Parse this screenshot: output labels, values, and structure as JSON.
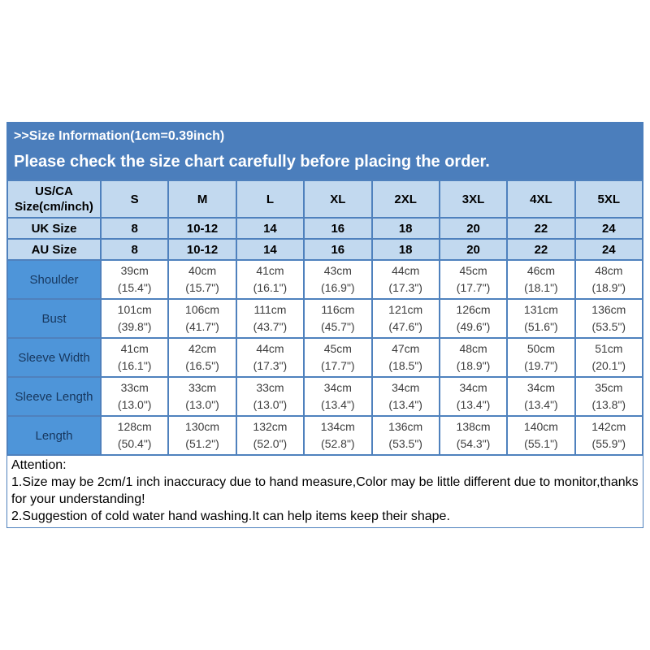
{
  "header": {
    "title": ">>Size Information(1cm=0.39inch)",
    "subtitle": "Please check the size chart carefully before placing the order."
  },
  "chart_data": {
    "type": "table",
    "title": ">>Size Information(1cm=0.39inch)",
    "columns": [
      "US/CA Size(cm/inch)",
      "S",
      "M",
      "L",
      "XL",
      "2XL",
      "3XL",
      "4XL",
      "5XL"
    ],
    "size_rows": [
      {
        "label": "UK Size",
        "values": [
          "8",
          "10-12",
          "14",
          "16",
          "18",
          "20",
          "22",
          "24"
        ]
      },
      {
        "label": "AU Size",
        "values": [
          "8",
          "10-12",
          "14",
          "16",
          "18",
          "20",
          "22",
          "24"
        ]
      }
    ],
    "measurement_rows": [
      {
        "label": "Shoulder",
        "values": [
          [
            "39cm",
            "(15.4\")"
          ],
          [
            "40cm",
            "(15.7\")"
          ],
          [
            "41cm",
            "(16.1\")"
          ],
          [
            "43cm",
            "(16.9\")"
          ],
          [
            "44cm",
            "(17.3\")"
          ],
          [
            "45cm",
            "(17.7\")"
          ],
          [
            "46cm",
            "(18.1\")"
          ],
          [
            "48cm",
            "(18.9\")"
          ]
        ]
      },
      {
        "label": "Bust",
        "values": [
          [
            "101cm",
            "(39.8\")"
          ],
          [
            "106cm",
            "(41.7\")"
          ],
          [
            "111cm",
            "(43.7\")"
          ],
          [
            "116cm",
            "(45.7\")"
          ],
          [
            "121cm",
            "(47.6\")"
          ],
          [
            "126cm",
            "(49.6\")"
          ],
          [
            "131cm",
            "(51.6\")"
          ],
          [
            "136cm",
            "(53.5\")"
          ]
        ]
      },
      {
        "label": "Sleeve Width",
        "values": [
          [
            "41cm",
            "(16.1\")"
          ],
          [
            "42cm",
            "(16.5\")"
          ],
          [
            "44cm",
            "(17.3\")"
          ],
          [
            "45cm",
            "(17.7\")"
          ],
          [
            "47cm",
            "(18.5\")"
          ],
          [
            "48cm",
            "(18.9\")"
          ],
          [
            "50cm",
            "(19.7\")"
          ],
          [
            "51cm",
            "(20.1\")"
          ]
        ]
      },
      {
        "label": "Sleeve Length",
        "values": [
          [
            "33cm",
            "(13.0\")"
          ],
          [
            "33cm",
            "(13.0\")"
          ],
          [
            "33cm",
            "(13.0\")"
          ],
          [
            "34cm",
            "(13.4\")"
          ],
          [
            "34cm",
            "(13.4\")"
          ],
          [
            "34cm",
            "(13.4\")"
          ],
          [
            "34cm",
            "(13.4\")"
          ],
          [
            "35cm",
            "(13.8\")"
          ]
        ]
      },
      {
        "label": "Length",
        "values": [
          [
            "128cm",
            "(50.4\")"
          ],
          [
            "130cm",
            "(51.2\")"
          ],
          [
            "132cm",
            "(52.0\")"
          ],
          [
            "134cm",
            "(52.8\")"
          ],
          [
            "136cm",
            "(53.5\")"
          ],
          [
            "138cm",
            "(54.3\")"
          ],
          [
            "140cm",
            "(55.1\")"
          ],
          [
            "142cm",
            "(55.9\")"
          ]
        ]
      }
    ]
  },
  "attention": {
    "title": "Attention:",
    "notes": [
      "1.Size may be 2cm/1 inch inaccuracy due to hand measure,Color may be little different due to monitor,thanks for your understanding!",
      "2.Suggestion of cold water hand washing.It can help items keep their shape."
    ]
  },
  "colors": {
    "header_band": "#4b7ebc",
    "header_text": "#ffffff",
    "light_cell": "#c2d9ef",
    "label_cell": "#4e95d9",
    "border": "#4f81bd",
    "cell_text": "#000000",
    "measure_text": "#3d3d3d",
    "label_text": "#17375e"
  }
}
